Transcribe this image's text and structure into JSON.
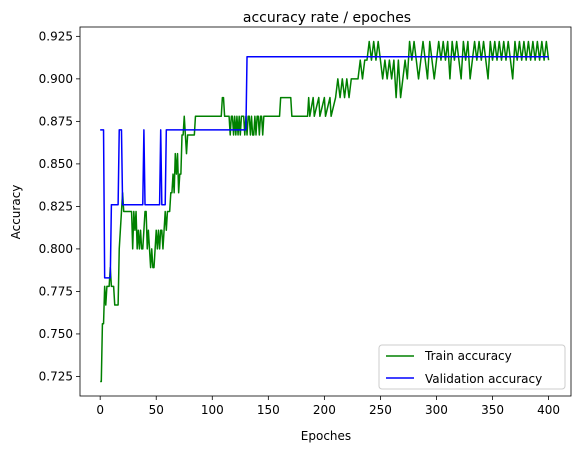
{
  "chart_data": {
    "type": "line",
    "title": "accuracy rate / epoches",
    "xlabel": "Epoches",
    "ylabel": "Accuracy",
    "xlim": [
      -18,
      420
    ],
    "ylim": [
      0.7135,
      0.9305
    ],
    "xticks": [
      0,
      50,
      100,
      150,
      200,
      250,
      300,
      350,
      400
    ],
    "yticks": [
      0.725,
      0.75,
      0.775,
      0.8,
      0.825,
      0.85,
      0.875,
      0.9,
      0.925
    ],
    "ytick_labels": [
      "0.725",
      "0.750",
      "0.775",
      "0.800",
      "0.825",
      "0.850",
      "0.875",
      "0.900",
      "0.925"
    ],
    "legend_position": "lower right",
    "grid": false,
    "series": [
      {
        "name": "Train accuracy",
        "color": "#008000",
        "points": [
          [
            0,
            0.722
          ],
          [
            1,
            0.722
          ],
          [
            2,
            0.756
          ],
          [
            3,
            0.756
          ],
          [
            4,
            0.778
          ],
          [
            5,
            0.767
          ],
          [
            6,
            0.778
          ],
          [
            7,
            0.778
          ],
          [
            8,
            0.778
          ],
          [
            9,
            0.789
          ],
          [
            10,
            0.778
          ],
          [
            11,
            0.778
          ],
          [
            12,
            0.778
          ],
          [
            13,
            0.767
          ],
          [
            14,
            0.767
          ],
          [
            15,
            0.767
          ],
          [
            16,
            0.767
          ],
          [
            17,
            0.8
          ],
          [
            18,
            0.811
          ],
          [
            19,
            0.822
          ],
          [
            20,
            0.833
          ],
          [
            21,
            0.822
          ],
          [
            22,
            0.822
          ],
          [
            23,
            0.822
          ],
          [
            24,
            0.822
          ],
          [
            25,
            0.822
          ],
          [
            26,
            0.822
          ],
          [
            27,
            0.822
          ],
          [
            28,
            0.822
          ],
          [
            29,
            0.8
          ],
          [
            30,
            0.822
          ],
          [
            31,
            0.811
          ],
          [
            32,
            0.822
          ],
          [
            33,
            0.8
          ],
          [
            34,
            0.811
          ],
          [
            35,
            0.8
          ],
          [
            36,
            0.811
          ],
          [
            37,
            0.8
          ],
          [
            38,
            0.8
          ],
          [
            39,
            0.811
          ],
          [
            40,
            0.822
          ],
          [
            41,
            0.822
          ],
          [
            42,
            0.8
          ],
          [
            43,
            0.811
          ],
          [
            44,
            0.8
          ],
          [
            45,
            0.789
          ],
          [
            46,
            0.8
          ],
          [
            47,
            0.789
          ],
          [
            48,
            0.789
          ],
          [
            49,
            0.8
          ],
          [
            50,
            0.811
          ],
          [
            51,
            0.8
          ],
          [
            52,
            0.811
          ],
          [
            53,
            0.8
          ],
          [
            54,
            0.811
          ],
          [
            55,
            0.811
          ],
          [
            56,
            0.8
          ],
          [
            57,
            0.811
          ],
          [
            58,
            0.822
          ],
          [
            59,
            0.811
          ],
          [
            60,
            0.822
          ],
          [
            61,
            0.822
          ],
          [
            62,
            0.822
          ],
          [
            63,
            0.833
          ],
          [
            64,
            0.833
          ],
          [
            65,
            0.844
          ],
          [
            66,
            0.833
          ],
          [
            67,
            0.856
          ],
          [
            68,
            0.844
          ],
          [
            69,
            0.856
          ],
          [
            70,
            0.833
          ],
          [
            71,
            0.844
          ],
          [
            72,
            0.844
          ],
          [
            73,
            0.867
          ],
          [
            74,
            0.867
          ],
          [
            75,
            0.878
          ],
          [
            76,
            0.867
          ],
          [
            77,
            0.856
          ],
          [
            78,
            0.867
          ],
          [
            79,
            0.867
          ],
          [
            80,
            0.867
          ],
          [
            81,
            0.867
          ],
          [
            82,
            0.867
          ],
          [
            83,
            0.867
          ],
          [
            84,
            0.867
          ],
          [
            85,
            0.878
          ],
          [
            86,
            0.878
          ],
          [
            90,
            0.878
          ],
          [
            95,
            0.878
          ],
          [
            100,
            0.878
          ],
          [
            105,
            0.878
          ],
          [
            108,
            0.878
          ],
          [
            109,
            0.889
          ],
          [
            110,
            0.889
          ],
          [
            111,
            0.878
          ],
          [
            115,
            0.878
          ],
          [
            116,
            0.867
          ],
          [
            117,
            0.878
          ],
          [
            118,
            0.878
          ],
          [
            119,
            0.867
          ],
          [
            120,
            0.878
          ],
          [
            121,
            0.867
          ],
          [
            122,
            0.878
          ],
          [
            123,
            0.867
          ],
          [
            124,
            0.878
          ],
          [
            125,
            0.867
          ],
          [
            126,
            0.878
          ],
          [
            127,
            0.878
          ],
          [
            128,
            0.878
          ],
          [
            129,
            0.867
          ],
          [
            130,
            0.878
          ],
          [
            131,
            0.867
          ],
          [
            132,
            0.878
          ],
          [
            133,
            0.878
          ],
          [
            134,
            0.867
          ],
          [
            135,
            0.878
          ],
          [
            136,
            0.867
          ],
          [
            137,
            0.867
          ],
          [
            138,
            0.878
          ],
          [
            139,
            0.867
          ],
          [
            140,
            0.878
          ],
          [
            141,
            0.878
          ],
          [
            142,
            0.867
          ],
          [
            143,
            0.878
          ],
          [
            144,
            0.878
          ],
          [
            145,
            0.867
          ],
          [
            146,
            0.878
          ],
          [
            150,
            0.878
          ],
          [
            155,
            0.878
          ],
          [
            160,
            0.878
          ],
          [
            161,
            0.889
          ],
          [
            165,
            0.889
          ],
          [
            170,
            0.889
          ],
          [
            171,
            0.878
          ],
          [
            175,
            0.878
          ],
          [
            180,
            0.878
          ],
          [
            181,
            0.878
          ],
          [
            185,
            0.878
          ],
          [
            186,
            0.889
          ],
          [
            187,
            0.878
          ],
          [
            190,
            0.889
          ],
          [
            191,
            0.878
          ],
          [
            195,
            0.889
          ],
          [
            196,
            0.878
          ],
          [
            200,
            0.889
          ],
          [
            201,
            0.878
          ],
          [
            205,
            0.889
          ],
          [
            206,
            0.878
          ],
          [
            210,
            0.889
          ],
          [
            212,
            0.9
          ],
          [
            214,
            0.889
          ],
          [
            216,
            0.9
          ],
          [
            218,
            0.889
          ],
          [
            220,
            0.9
          ],
          [
            222,
            0.889
          ],
          [
            224,
            0.9
          ],
          [
            225,
            0.9
          ],
          [
            230,
            0.9
          ],
          [
            232,
            0.911
          ],
          [
            234,
            0.9
          ],
          [
            236,
            0.911
          ],
          [
            238,
            0.911
          ],
          [
            240,
            0.922
          ],
          [
            242,
            0.911
          ],
          [
            244,
            0.922
          ],
          [
            246,
            0.911
          ],
          [
            248,
            0.922
          ],
          [
            250,
            0.911
          ],
          [
            252,
            0.9
          ],
          [
            254,
            0.911
          ],
          [
            256,
            0.9
          ],
          [
            258,
            0.911
          ],
          [
            260,
            0.9
          ],
          [
            262,
            0.911
          ],
          [
            264,
            0.889
          ],
          [
            266,
            0.911
          ],
          [
            268,
            0.889
          ],
          [
            270,
            0.9
          ],
          [
            272,
            0.911
          ],
          [
            274,
            0.9
          ],
          [
            276,
            0.922
          ],
          [
            278,
            0.911
          ],
          [
            280,
            0.922
          ],
          [
            282,
            0.911
          ],
          [
            284,
            0.9
          ],
          [
            286,
            0.911
          ],
          [
            288,
            0.922
          ],
          [
            290,
            0.911
          ],
          [
            292,
            0.9
          ],
          [
            294,
            0.922
          ],
          [
            296,
            0.911
          ],
          [
            298,
            0.9
          ],
          [
            300,
            0.911
          ],
          [
            302,
            0.922
          ],
          [
            304,
            0.911
          ],
          [
            306,
            0.922
          ],
          [
            308,
            0.911
          ],
          [
            310,
            0.922
          ],
          [
            312,
            0.9
          ],
          [
            314,
            0.922
          ],
          [
            316,
            0.911
          ],
          [
            318,
            0.922
          ],
          [
            320,
            0.911
          ],
          [
            322,
            0.9
          ],
          [
            324,
            0.922
          ],
          [
            326,
            0.911
          ],
          [
            328,
            0.922
          ],
          [
            330,
            0.9
          ],
          [
            332,
            0.911
          ],
          [
            334,
            0.922
          ],
          [
            336,
            0.911
          ],
          [
            338,
            0.922
          ],
          [
            340,
            0.911
          ],
          [
            342,
            0.922
          ],
          [
            344,
            0.911
          ],
          [
            346,
            0.9
          ],
          [
            348,
            0.922
          ],
          [
            350,
            0.911
          ],
          [
            352,
            0.922
          ],
          [
            354,
            0.911
          ],
          [
            356,
            0.922
          ],
          [
            358,
            0.911
          ],
          [
            360,
            0.922
          ],
          [
            362,
            0.911
          ],
          [
            364,
            0.922
          ],
          [
            366,
            0.911
          ],
          [
            368,
            0.9
          ],
          [
            370,
            0.922
          ],
          [
            372,
            0.911
          ],
          [
            374,
            0.922
          ],
          [
            376,
            0.911
          ],
          [
            378,
            0.922
          ],
          [
            380,
            0.911
          ],
          [
            382,
            0.922
          ],
          [
            384,
            0.911
          ],
          [
            386,
            0.922
          ],
          [
            388,
            0.911
          ],
          [
            390,
            0.922
          ],
          [
            392,
            0.911
          ],
          [
            394,
            0.922
          ],
          [
            396,
            0.911
          ],
          [
            398,
            0.922
          ],
          [
            400,
            0.911
          ]
        ]
      },
      {
        "name": "Validation accuracy",
        "color": "#0000ff",
        "points": [
          [
            0,
            0.87
          ],
          [
            3,
            0.87
          ],
          [
            4,
            0.783
          ],
          [
            5,
            0.783
          ],
          [
            9,
            0.783
          ],
          [
            10,
            0.826
          ],
          [
            16,
            0.826
          ],
          [
            17,
            0.87
          ],
          [
            18,
            0.87
          ],
          [
            19,
            0.87
          ],
          [
            20,
            0.826
          ],
          [
            38,
            0.826
          ],
          [
            39,
            0.87
          ],
          [
            40,
            0.826
          ],
          [
            53,
            0.826
          ],
          [
            54,
            0.87
          ],
          [
            55,
            0.826
          ],
          [
            58,
            0.826
          ],
          [
            59,
            0.87
          ],
          [
            130,
            0.87
          ],
          [
            131,
            0.913
          ],
          [
            400,
            0.913
          ]
        ]
      }
    ]
  }
}
